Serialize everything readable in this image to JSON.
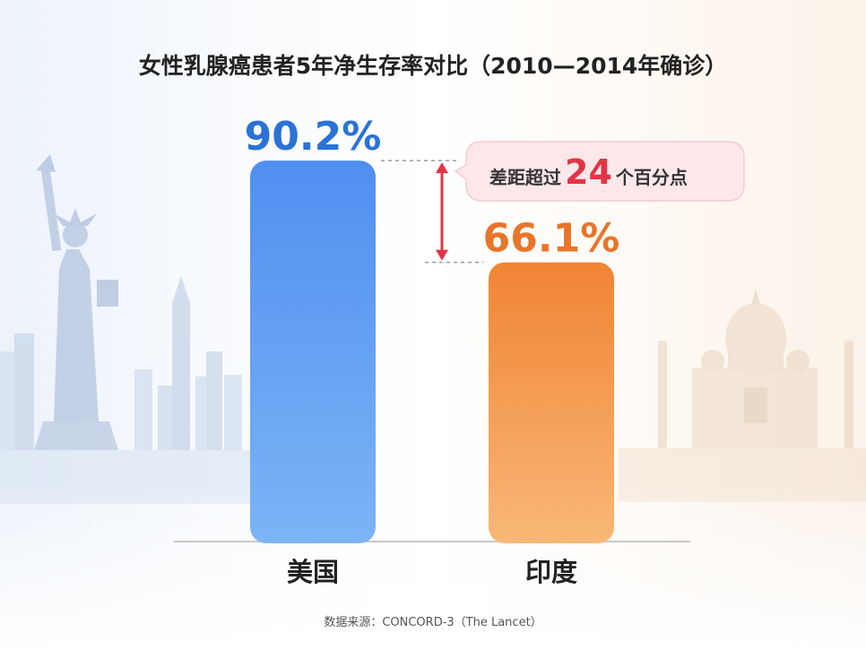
{
  "title": "女性乳腺癌患者5年净生存率对比（2010—2014年确诊）",
  "source": "数据来源：CONCORD-3（The Lancet）",
  "callout": {
    "prefix": "差距超过",
    "number": "24",
    "suffix": "个百分点"
  },
  "colors": {
    "usa": "#4d90ec",
    "india": "#f28a36",
    "accent": "#e03545"
  },
  "chart_data": {
    "type": "bar",
    "categories": [
      "美国",
      "印度"
    ],
    "values": [
      90.2,
      66.1
    ],
    "value_labels": [
      "90.2%",
      "66.1%"
    ],
    "ylim": [
      0,
      100
    ],
    "title": "女性乳腺癌患者5年净生存率对比（2010—2014年确诊）"
  }
}
